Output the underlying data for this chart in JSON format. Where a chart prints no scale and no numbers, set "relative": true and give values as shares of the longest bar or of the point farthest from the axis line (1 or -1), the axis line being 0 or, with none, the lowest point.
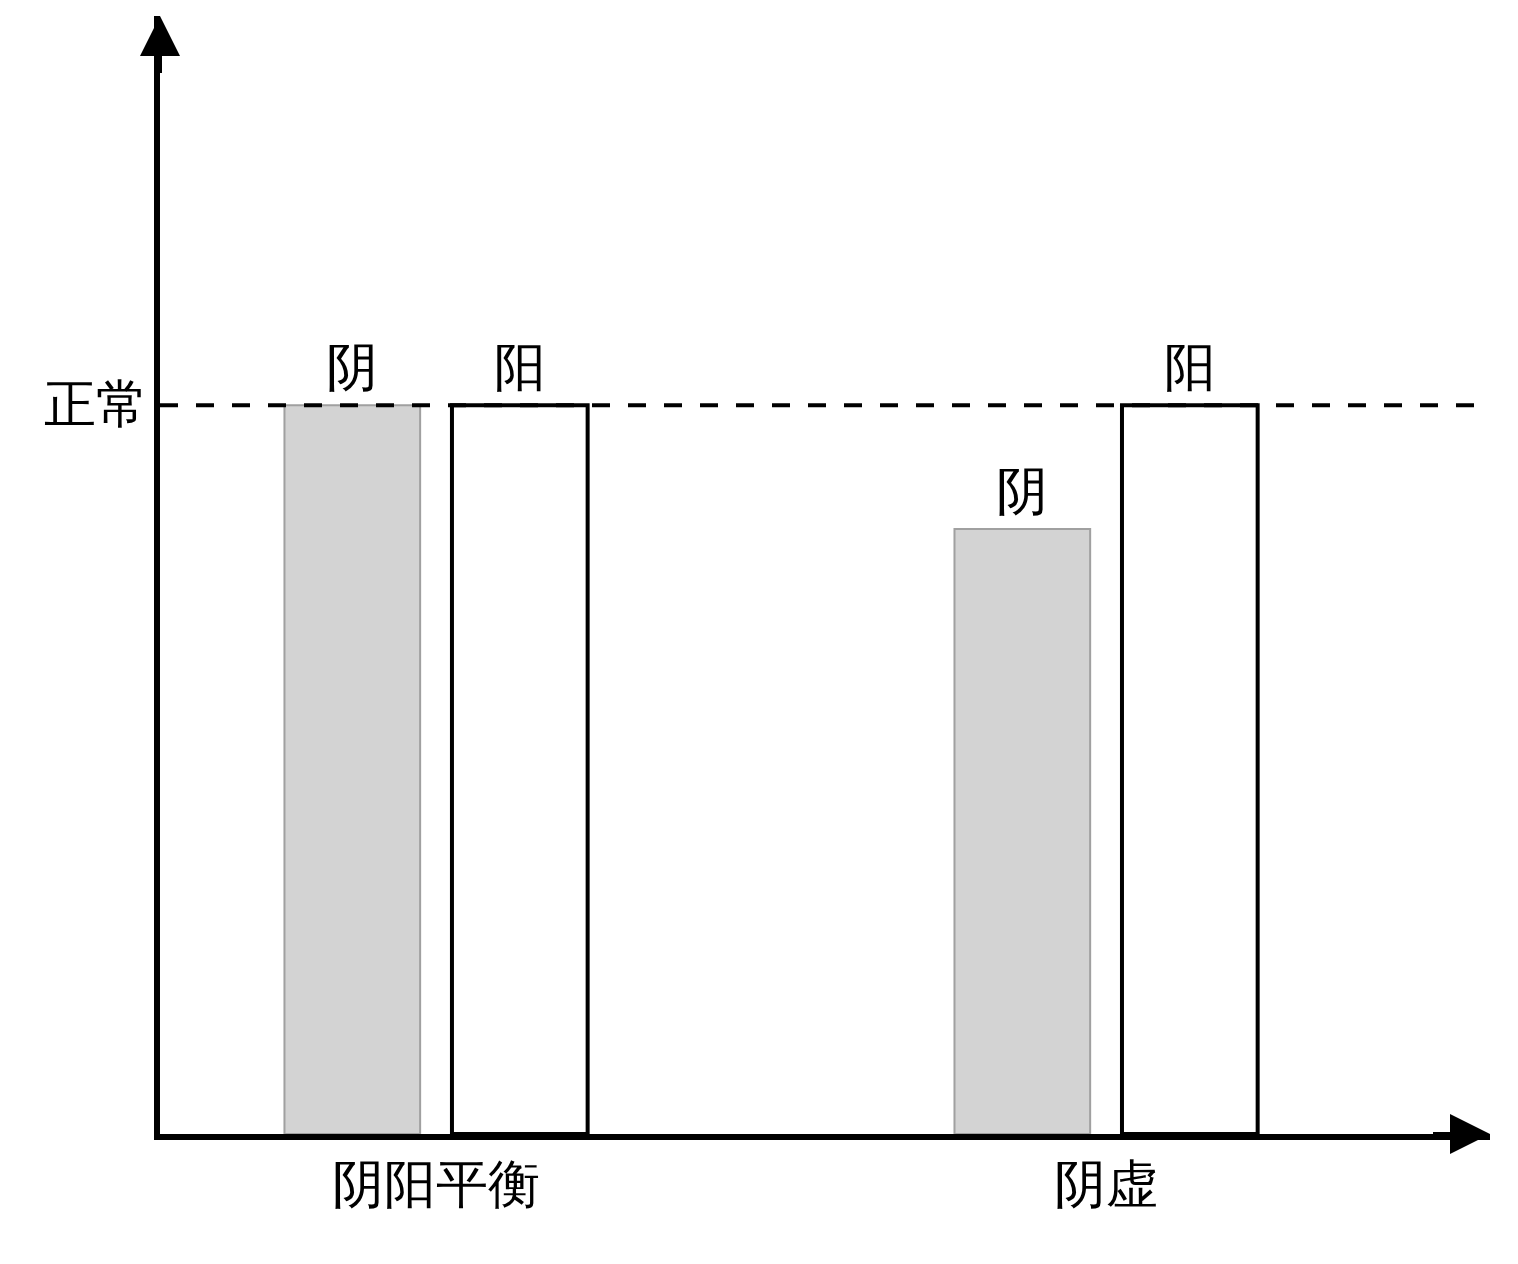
{
  "chart_data": {
    "type": "bar",
    "relative": true,
    "categories": [
      "阴阳平衡",
      "阴虚"
    ],
    "series": [
      {
        "name": "阴",
        "color": "#d3d3d3",
        "values": [
          1,
          0.83
        ]
      },
      {
        "name": "阳",
        "color": "#ffffff",
        "values": [
          1,
          1
        ]
      }
    ],
    "ref_lines": [
      {
        "axis": "y",
        "value": 1,
        "label": "正常",
        "line_style": "dashed",
        "color": "#000000"
      }
    ],
    "legend": false
  }
}
